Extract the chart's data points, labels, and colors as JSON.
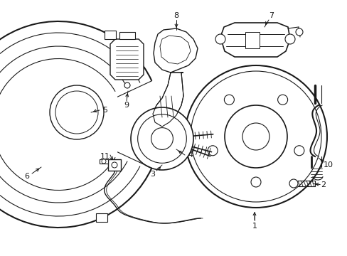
{
  "bg_color": "#ffffff",
  "line_color": "#1a1a1a",
  "lw": 1.0,
  "figsize": [
    4.89,
    3.6
  ],
  "dpi": 100,
  "xlim": [
    0,
    489
  ],
  "ylim": [
    0,
    360
  ]
}
